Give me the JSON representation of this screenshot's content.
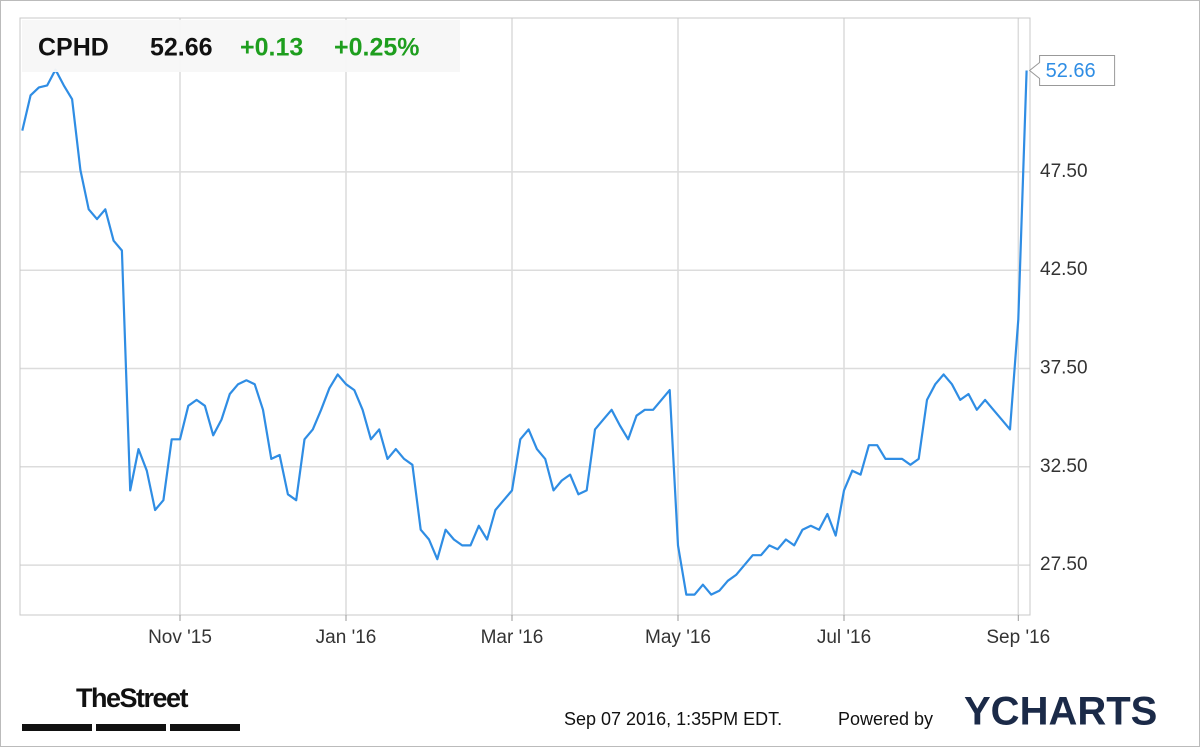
{
  "chart_data": {
    "type": "line",
    "header": {
      "change": "+0.13",
      "change_pct": "+0.25%"
    },
    "categories": [
      null,
      null,
      null,
      null,
      null,
      null,
      null,
      null,
      null,
      null,
      null,
      null,
      null,
      null,
      null,
      null,
      null,
      null,
      null,
      "Nov '15",
      null,
      null,
      null,
      null,
      null,
      null,
      null,
      null,
      null,
      null,
      null,
      null,
      null,
      null,
      null,
      null,
      null,
      null,
      null,
      "Jan '16",
      null,
      null,
      null,
      null,
      null,
      null,
      null,
      null,
      null,
      null,
      null,
      null,
      null,
      null,
      null,
      null,
      null,
      null,
      null,
      "Mar '16",
      null,
      null,
      null,
      null,
      null,
      null,
      null,
      null,
      null,
      null,
      null,
      null,
      null,
      null,
      null,
      null,
      null,
      null,
      null,
      "May '16",
      null,
      null,
      null,
      null,
      null,
      null,
      null,
      null,
      null,
      null,
      null,
      null,
      null,
      null,
      null,
      null,
      null,
      null,
      null,
      "Jul '16",
      null,
      null,
      null,
      null,
      null,
      null,
      null,
      null,
      null,
      null,
      null,
      null,
      null,
      null,
      null,
      null,
      null,
      null,
      null,
      null,
      "Sep '16",
      null
    ],
    "series": [
      {
        "name": "CPHD",
        "color": "#2f8de4",
        "values": [
          49.6,
          51.4,
          51.8,
          51.9,
          52.7,
          51.9,
          51.2,
          47.6,
          45.6,
          45.1,
          45.6,
          44.0,
          43.5,
          31.3,
          33.4,
          32.3,
          30.3,
          30.8,
          33.9,
          33.9,
          35.6,
          35.9,
          35.6,
          34.1,
          34.9,
          36.2,
          36.7,
          36.9,
          36.7,
          35.4,
          32.9,
          33.1,
          31.1,
          30.8,
          33.9,
          34.4,
          35.4,
          36.5,
          37.2,
          36.7,
          36.4,
          35.4,
          33.9,
          34.4,
          32.9,
          33.4,
          32.9,
          32.6,
          29.3,
          28.8,
          27.8,
          29.3,
          28.8,
          28.5,
          28.5,
          29.5,
          28.8,
          30.3,
          30.8,
          31.3,
          33.9,
          34.4,
          33.4,
          32.9,
          31.3,
          31.8,
          32.1,
          31.1,
          31.3,
          34.4,
          34.9,
          35.4,
          34.6,
          33.9,
          35.1,
          35.4,
          35.4,
          35.9,
          36.4,
          28.5,
          26.0,
          26.0,
          26.5,
          26.0,
          26.2,
          26.7,
          27.0,
          27.5,
          28.0,
          28.0,
          28.5,
          28.3,
          28.8,
          28.5,
          29.3,
          29.5,
          29.3,
          30.1,
          29.0,
          31.3,
          32.3,
          32.1,
          33.6,
          33.6,
          32.9,
          32.9,
          32.9,
          32.6,
          32.9,
          35.9,
          36.7,
          37.2,
          36.7,
          35.9,
          36.2,
          35.4,
          35.9,
          35.4,
          34.9,
          34.4,
          40.0,
          52.66
        ]
      }
    ],
    "ylim": [
      24.96,
      55.33
    ],
    "yticks": [
      {
        "value": 27.5,
        "label": "27.50"
      },
      {
        "value": 32.5,
        "label": "32.50"
      },
      {
        "value": 37.5,
        "label": "37.50"
      },
      {
        "value": 42.5,
        "label": "42.50"
      },
      {
        "value": 47.5,
        "label": "47.50"
      }
    ],
    "grid": true,
    "positive_color": "#1e9e1e",
    "footer": {
      "brand": "TheStreet",
      "timestamp": "Sep 07 2016, 1:35PM EDT.",
      "powered": "Powered by",
      "provider": "YCHARTS"
    }
  }
}
